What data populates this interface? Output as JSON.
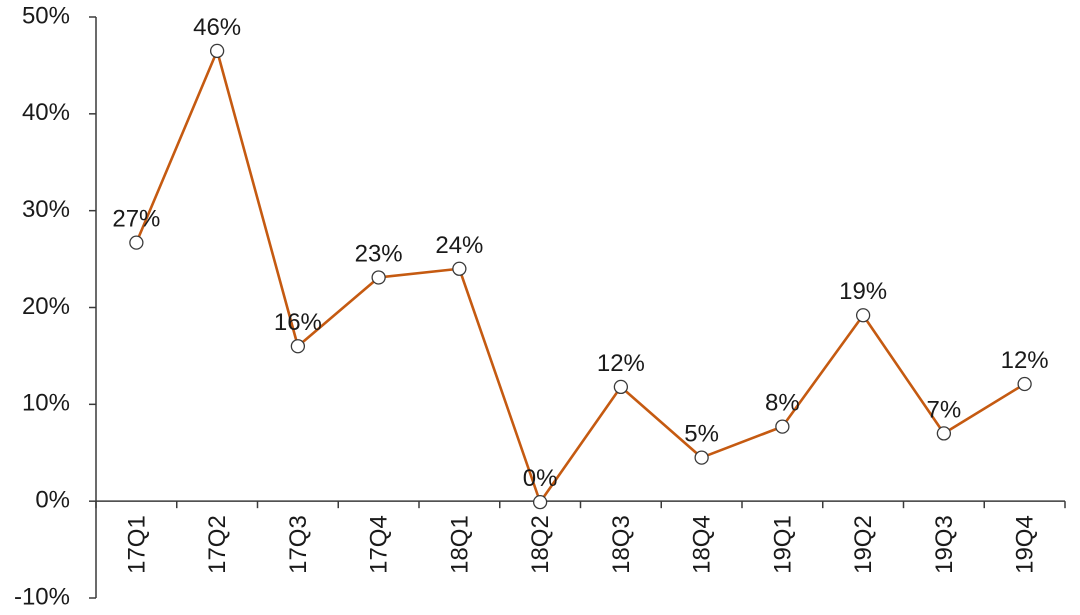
{
  "chart_data": {
    "type": "line",
    "title": "",
    "xlabel": "",
    "ylabel": "",
    "categories": [
      "17Q1",
      "17Q2",
      "17Q3",
      "17Q4",
      "18Q1",
      "18Q2",
      "18Q3",
      "18Q4",
      "19Q1",
      "19Q2",
      "19Q3",
      "19Q4"
    ],
    "series": [
      {
        "values": [
          26.7,
          46.5,
          16.0,
          23.1,
          24.0,
          -0.1,
          11.8,
          4.5,
          7.7,
          19.2,
          7.0,
          12.1
        ],
        "color": "#C55A11",
        "data_labels": [
          "27%",
          "46%",
          "16%",
          "23%",
          "24%",
          "0%",
          "12%",
          "5%",
          "8%",
          "19%",
          "7%",
          "12%"
        ]
      }
    ],
    "ylim": [
      -10,
      50
    ],
    "y_ticks": [
      50,
      40,
      30,
      20,
      10,
      0,
      -10
    ],
    "y_tick_labels": [
      "50%",
      "40%",
      "30%",
      "20%",
      "10%",
      "0%",
      "-10%"
    ],
    "grid": false,
    "legend": "none",
    "marker": "open-circle"
  }
}
